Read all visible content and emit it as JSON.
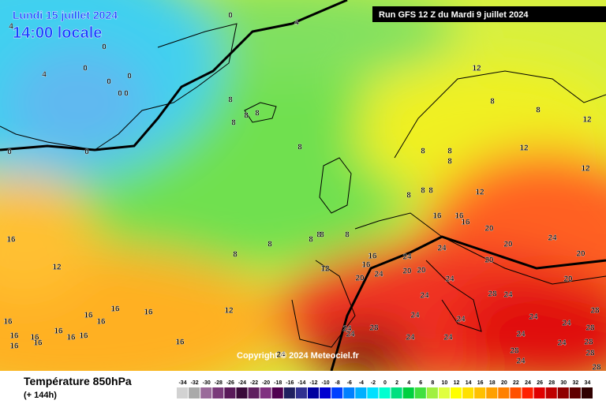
{
  "header": {
    "date": "Lundi 15 juillet 2024",
    "time": "14:00 locale",
    "run": "Run GFS 12 Z du Mardi 9 juillet 2024"
  },
  "copyright": "Copyright © 2024 Meteociel.fr",
  "footer": {
    "title": "Température 850hPa",
    "lead": "(+ 144h)"
  },
  "scale": {
    "values": [
      -34,
      -32,
      -30,
      -28,
      -26,
      -24,
      -22,
      -20,
      -18,
      -16,
      -14,
      -12,
      -10,
      -8,
      -6,
      -4,
      -2,
      0,
      2,
      4,
      6,
      8,
      10,
      12,
      14,
      16,
      18,
      20,
      22,
      24,
      26,
      28,
      30,
      32,
      34
    ],
    "colors": [
      "#d2d2d2",
      "#aaaaaa",
      "#9a6a9a",
      "#7a3a7a",
      "#5a1a5a",
      "#3a0a3a",
      "#602060",
      "#803080",
      "#500050",
      "#202060",
      "#303090",
      "#0000a0",
      "#0000d0",
      "#0040ff",
      "#0080ff",
      "#00b0ff",
      "#00e0ff",
      "#00ffd0",
      "#00e080",
      "#00d040",
      "#40e040",
      "#a0f040",
      "#e0ff40",
      "#ffff00",
      "#ffe000",
      "#ffc000",
      "#ffa000",
      "#ff8000",
      "#ff5000",
      "#ff2000",
      "#e00000",
      "#c00000",
      "#900000",
      "#600000",
      "#300000"
    ]
  },
  "contour_labels": [
    0,
    4,
    4,
    0,
    4,
    0,
    0,
    0,
    0,
    0,
    0,
    0,
    12,
    8,
    8,
    8,
    8,
    8,
    8,
    12,
    8,
    8,
    8,
    8,
    12,
    12,
    8,
    8,
    8,
    12,
    16,
    16,
    16,
    20,
    24,
    16,
    8,
    8,
    8,
    8,
    8,
    8,
    16,
    24,
    24,
    20,
    20,
    16,
    12,
    12,
    20,
    24,
    20,
    20,
    20,
    24,
    20,
    24,
    28,
    24,
    28,
    12,
    16,
    16,
    16,
    16,
    16,
    24,
    24,
    24,
    28,
    24,
    24,
    28,
    24,
    24,
    16,
    16,
    16,
    16,
    16,
    16,
    16,
    28,
    24,
    24,
    24,
    28,
    24,
    28,
    16,
    24,
    28
  ]
}
